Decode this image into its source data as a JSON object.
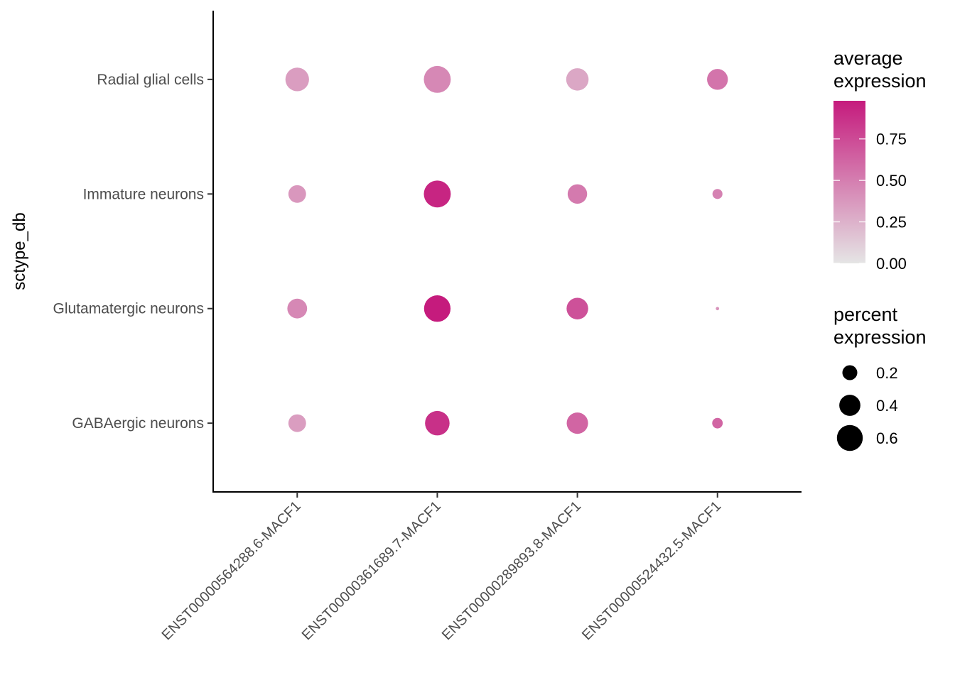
{
  "chart_data": {
    "type": "dot",
    "title": "",
    "xlabel": "",
    "ylabel": "sctype_db",
    "categories_x": [
      "ENST00000564288.6-MACF1",
      "ENST00000361689.7-MACF1",
      "ENST00000289893.8-MACF1",
      "ENST00000524432.5-MACF1"
    ],
    "categories_y": [
      "Radial glial cells",
      "Immature neurons",
      "Glutamatergic neurons",
      "GABAergic neurons"
    ],
    "series": [
      {
        "row": "Radial glial cells",
        "average_expression": [
          0.35,
          0.45,
          0.3,
          0.55
        ],
        "percent_expression": [
          0.5,
          0.65,
          0.45,
          0.39
        ]
      },
      {
        "row": "Immature neurons",
        "average_expression": [
          0.38,
          0.93,
          0.52,
          0.48
        ],
        "percent_expression": [
          0.28,
          0.65,
          0.34,
          0.09
        ]
      },
      {
        "row": "Glutamatergic neurons",
        "average_expression": [
          0.45,
          0.98,
          0.72,
          0.4
        ],
        "percent_expression": [
          0.35,
          0.63,
          0.42,
          0.01
        ]
      },
      {
        "row": "GABAergic neurons",
        "average_expression": [
          0.35,
          0.88,
          0.62,
          0.62
        ],
        "percent_expression": [
          0.28,
          0.54,
          0.41,
          0.1
        ]
      }
    ],
    "color_legend": {
      "title_line1": "average",
      "title_line2": "expression",
      "ticks": [
        "0.75",
        "0.50",
        "0.25",
        "0.00"
      ],
      "tick_values": [
        0.75,
        0.5,
        0.25,
        0
      ],
      "range": [
        0,
        0.98
      ],
      "low_color": "#e5e5e5",
      "high_color": "#c51b7d"
    },
    "size_legend": {
      "title_line1": "percent",
      "title_line2": "expression",
      "labels": [
        "0.2",
        "0.4",
        "0.6"
      ],
      "values": [
        0.2,
        0.4,
        0.6
      ]
    },
    "grid": false,
    "legend_position": "right"
  }
}
